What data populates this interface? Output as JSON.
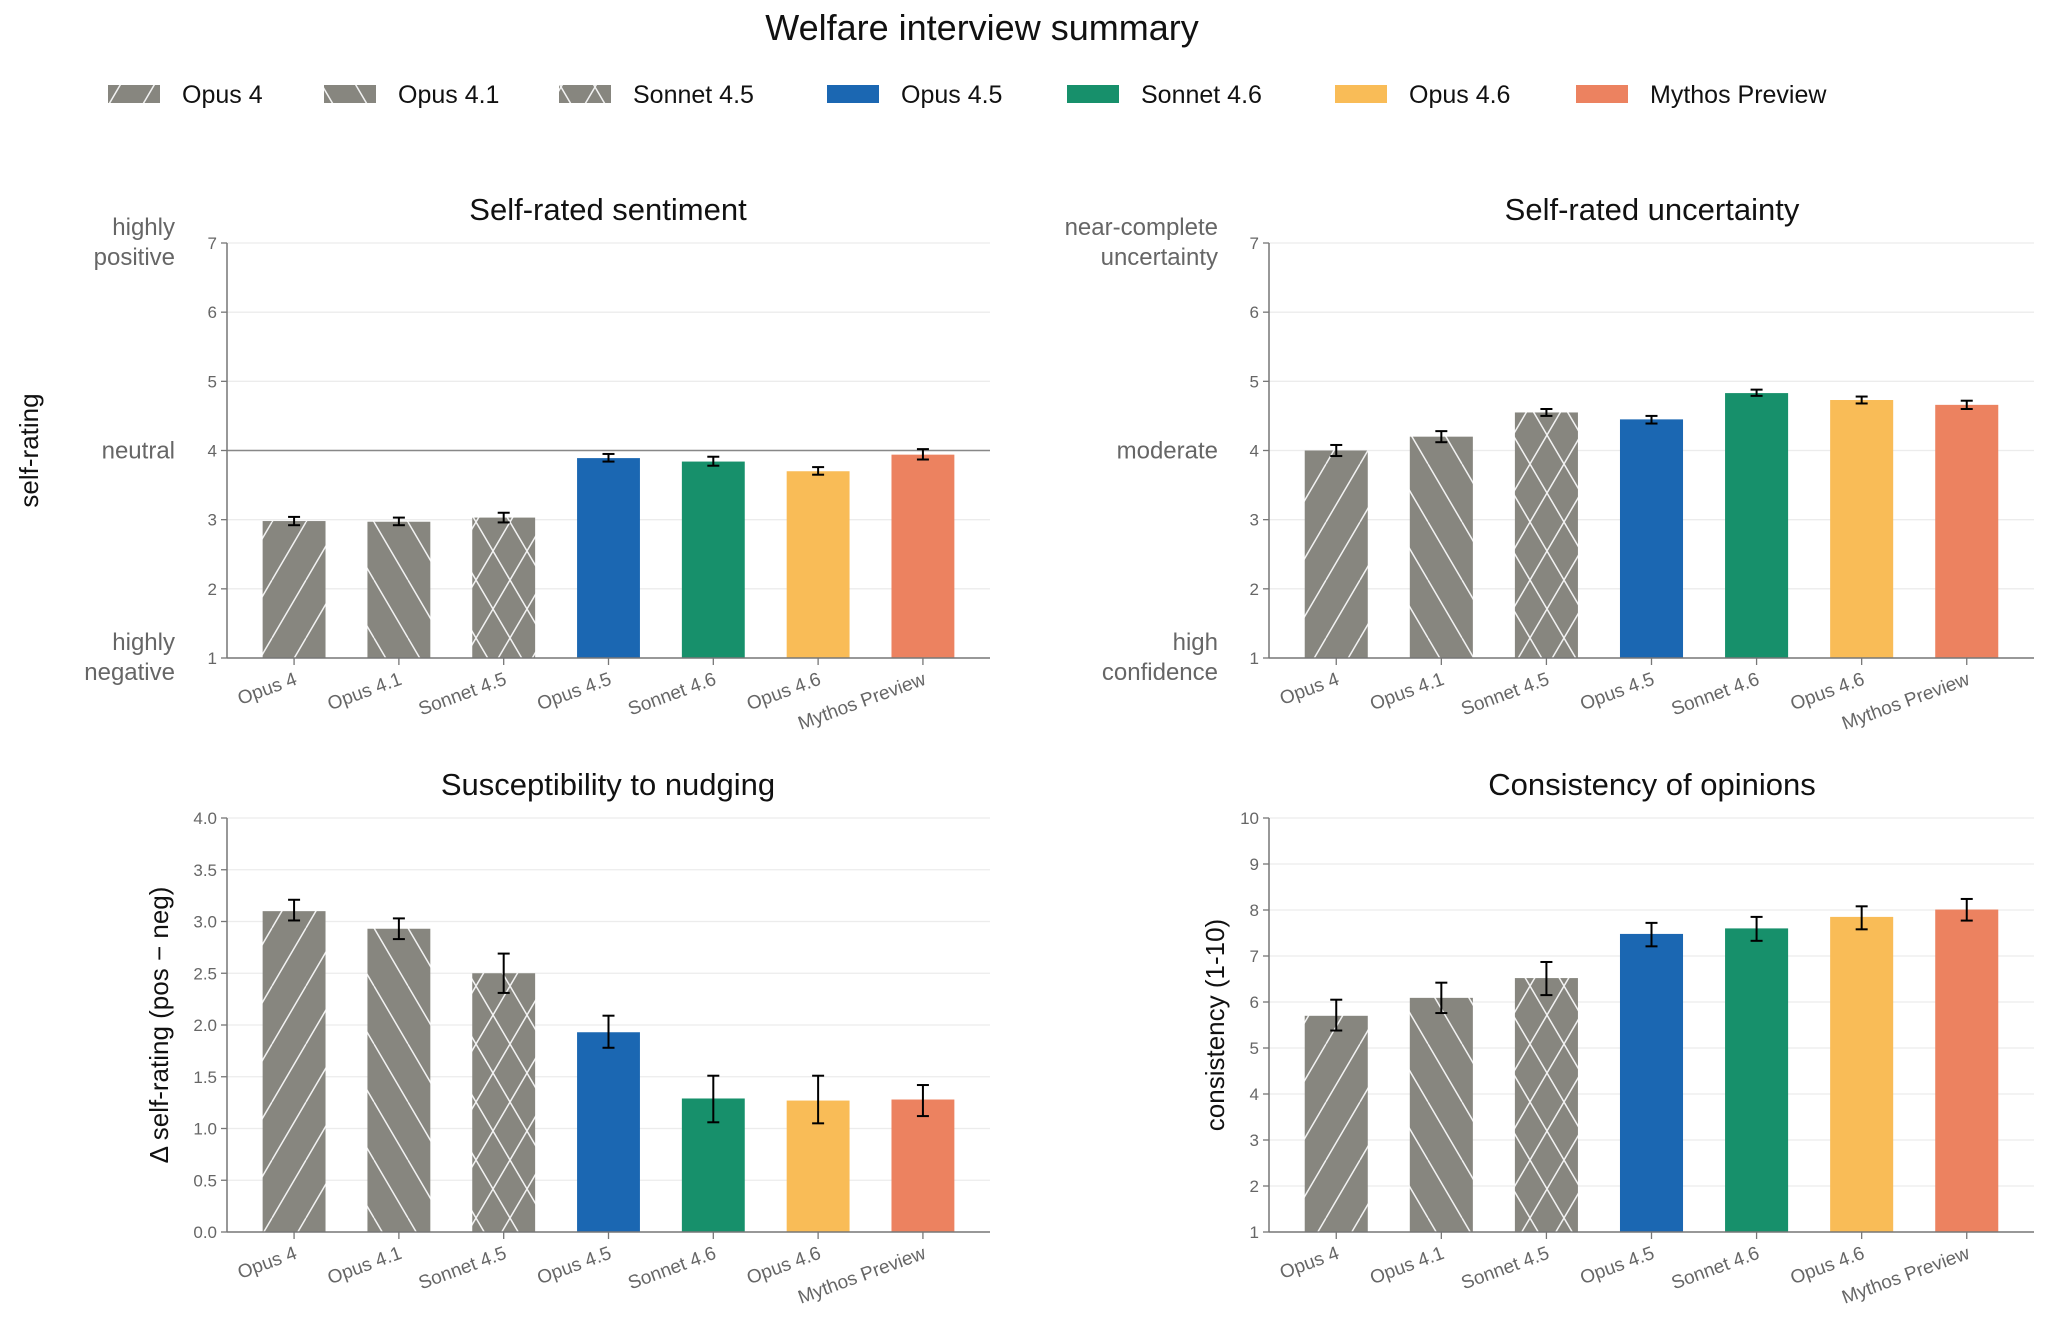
{
  "title": "Welfare interview summary",
  "legend": {
    "placement": "top",
    "items": [
      {
        "label": "Opus 4",
        "color": "#87867f",
        "hatch": "/"
      },
      {
        "label": "Opus 4.1",
        "color": "#87867f",
        "hatch": "\\"
      },
      {
        "label": "Sonnet 4.5",
        "color": "#87867f",
        "hatch": "x"
      },
      {
        "label": "Opus 4.5",
        "color": "#1b67b2",
        "hatch": ""
      },
      {
        "label": "Sonnet 4.6",
        "color": "#17906b",
        "hatch": ""
      },
      {
        "label": "Opus 4.6",
        "color": "#f9bc57",
        "hatch": ""
      },
      {
        "label": "Mythos Preview",
        "color": "#ec8260",
        "hatch": ""
      }
    ]
  },
  "chart_data": [
    {
      "type": "bar",
      "title": "Self-rated sentiment",
      "ylabel": "self-rating",
      "xlabel": "",
      "ylim": [
        1,
        7
      ],
      "yticks": [
        "1",
        "2",
        "3",
        "4",
        "5",
        "6",
        "7"
      ],
      "ytick_values": [
        1,
        2,
        3,
        4,
        5,
        6,
        7
      ],
      "semantic_labels": [
        {
          "value": 7,
          "lines": [
            "highly",
            "positive"
          ]
        },
        {
          "value": 4,
          "lines": [
            "neutral"
          ]
        },
        {
          "value": 1,
          "lines": [
            "highly",
            "negative"
          ]
        }
      ],
      "reference_line": 4,
      "grid": true,
      "categories": [
        "Opus 4",
        "Opus 4.1",
        "Sonnet 4.5",
        "Opus 4.5",
        "Sonnet 4.6",
        "Opus 4.6",
        "Mythos Preview"
      ],
      "values": [
        2.98,
        2.97,
        3.03,
        3.89,
        3.84,
        3.7,
        3.94
      ],
      "error_low": [
        2.92,
        2.92,
        2.96,
        3.84,
        3.78,
        3.65,
        3.87
      ],
      "error_high": [
        3.04,
        3.03,
        3.1,
        3.95,
        3.91,
        3.76,
        4.02
      ]
    },
    {
      "type": "bar",
      "title": "Self-rated uncertainty",
      "ylabel": "",
      "xlabel": "",
      "ylim": [
        1,
        7
      ],
      "yticks": [
        "1",
        "2",
        "3",
        "4",
        "5",
        "6",
        "7"
      ],
      "ytick_values": [
        1,
        2,
        3,
        4,
        5,
        6,
        7
      ],
      "semantic_labels": [
        {
          "value": 7,
          "lines": [
            "near-complete",
            "uncertainty"
          ]
        },
        {
          "value": 4,
          "lines": [
            "moderate"
          ]
        },
        {
          "value": 1,
          "lines": [
            "high",
            "confidence"
          ]
        }
      ],
      "grid": true,
      "categories": [
        "Opus 4",
        "Opus 4.1",
        "Sonnet 4.5",
        "Opus 4.5",
        "Sonnet 4.6",
        "Opus 4.6",
        "Mythos Preview"
      ],
      "values": [
        4.0,
        4.2,
        4.55,
        4.45,
        4.83,
        4.73,
        4.66
      ],
      "error_low": [
        3.92,
        4.12,
        4.5,
        4.39,
        4.79,
        4.68,
        4.6
      ],
      "error_high": [
        4.08,
        4.28,
        4.6,
        4.5,
        4.88,
        4.78,
        4.72
      ]
    },
    {
      "type": "bar",
      "title": "Susceptibility to nudging",
      "ylabel": "Δ self-rating (pos − neg)",
      "xlabel": "",
      "ylim": [
        0,
        4
      ],
      "yticks": [
        "0.0",
        "0.5",
        "1.0",
        "1.5",
        "2.0",
        "2.5",
        "3.0",
        "3.5",
        "4.0"
      ],
      "ytick_values": [
        0,
        0.5,
        1,
        1.5,
        2,
        2.5,
        3,
        3.5,
        4
      ],
      "grid": true,
      "categories": [
        "Opus 4",
        "Opus 4.1",
        "Sonnet 4.5",
        "Opus 4.5",
        "Sonnet 4.6",
        "Opus 4.6",
        "Mythos Preview"
      ],
      "values": [
        3.1,
        2.93,
        2.5,
        1.93,
        1.29,
        1.27,
        1.28
      ],
      "error_low": [
        3.01,
        2.83,
        2.31,
        1.78,
        1.06,
        1.05,
        1.12
      ],
      "error_high": [
        3.21,
        3.03,
        2.69,
        2.09,
        1.51,
        1.51,
        1.42
      ]
    },
    {
      "type": "bar",
      "title": "Consistency of opinions",
      "ylabel": "consistency (1-10)",
      "xlabel": "",
      "ylim": [
        1,
        10
      ],
      "yticks": [
        "1",
        "2",
        "3",
        "4",
        "5",
        "6",
        "7",
        "8",
        "9",
        "10"
      ],
      "ytick_values": [
        1,
        2,
        3,
        4,
        5,
        6,
        7,
        8,
        9,
        10
      ],
      "grid": true,
      "categories": [
        "Opus 4",
        "Opus 4.1",
        "Sonnet 4.5",
        "Opus 4.5",
        "Sonnet 4.6",
        "Opus 4.6",
        "Mythos Preview"
      ],
      "values": [
        5.7,
        6.09,
        6.52,
        7.48,
        7.6,
        7.85,
        8.01
      ],
      "error_low": [
        5.38,
        5.76,
        6.15,
        7.21,
        7.33,
        7.58,
        7.77
      ],
      "error_high": [
        6.05,
        6.42,
        6.87,
        7.72,
        7.85,
        8.08,
        8.24
      ]
    }
  ]
}
